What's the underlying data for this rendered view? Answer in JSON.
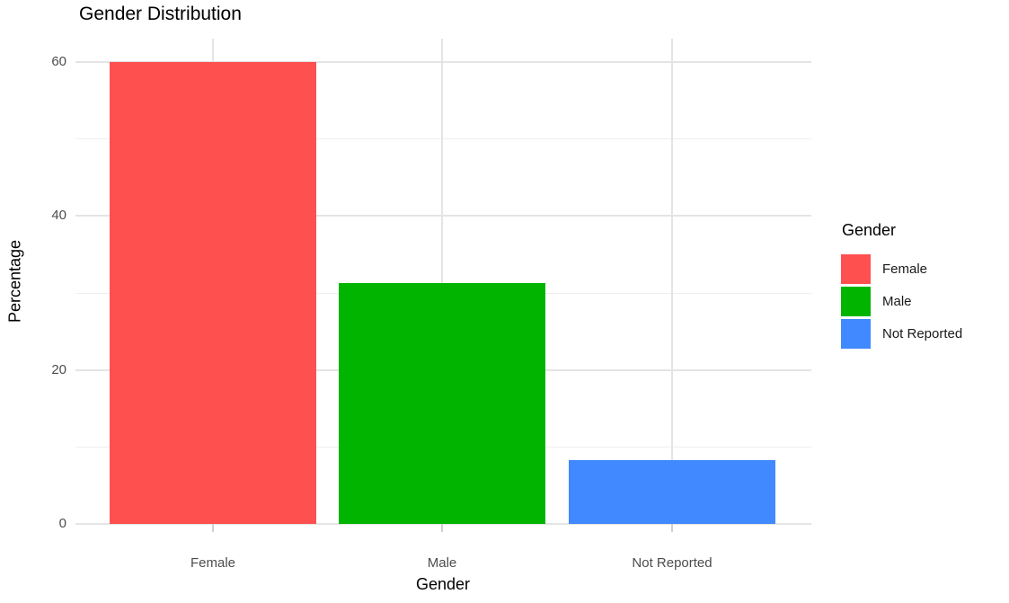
{
  "chart_data": {
    "type": "bar",
    "title": "Gender Distribution",
    "xlabel": "Gender",
    "ylabel": "Percentage",
    "categories": [
      "Female",
      "Male",
      "Not Reported"
    ],
    "values": [
      60,
      31.3,
      8.3
    ],
    "bar_colors": [
      "#FF5050",
      "#00B400",
      "#4189FF"
    ],
    "ylim": [
      0,
      63
    ],
    "yticks": [
      0,
      20,
      40,
      60
    ],
    "yticks_minor": [
      10,
      30,
      50
    ],
    "grid": "horizontal major+minor, vertical major at category centers, light grey on white",
    "legend": {
      "title": "Gender",
      "position": "right",
      "entries": [
        {
          "label": "Female",
          "color": "#FF5050"
        },
        {
          "label": "Male",
          "color": "#00B400"
        },
        {
          "label": "Not Reported",
          "color": "#4189FF"
        }
      ]
    }
  },
  "colors": {
    "background": "#FFFFFF",
    "grid_major": "#E4E4E4",
    "grid_minor": "#EFEFEF",
    "tick_mark": "#CFCFCF",
    "tick_text": "#4D4D4D",
    "title_text": "#000000"
  }
}
